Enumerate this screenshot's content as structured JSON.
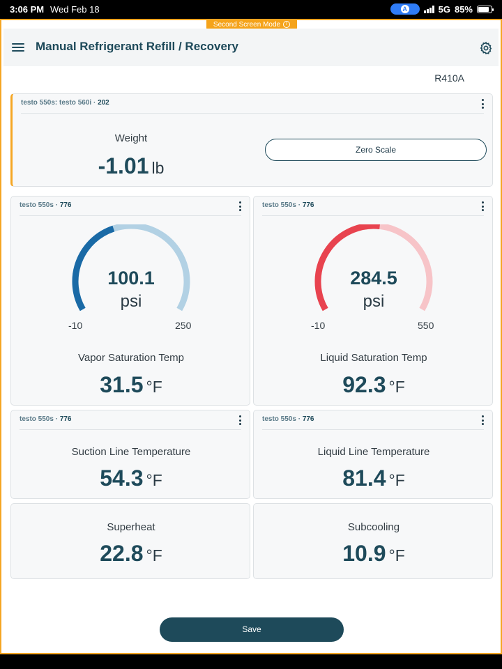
{
  "status_bar": {
    "time": "3:06 PM",
    "date": "Wed Feb 18",
    "network": "5G",
    "battery": "85%",
    "battery_fraction": 0.85
  },
  "mode_tag": "Second Screen Mode",
  "app": {
    "title": "Manual Refrigerant Refill / Recovery",
    "refrigerant": "R410A"
  },
  "weight_card": {
    "device": "testo 550s: testo 560i",
    "device_id": "202",
    "label": "Weight",
    "value": "-1.01",
    "unit": "lb",
    "zero_button": "Zero Scale"
  },
  "gauge_cards": [
    {
      "device": "testo 550s",
      "device_id": "776",
      "value": "100.1",
      "unit": "psi",
      "min": "-10",
      "max": "250",
      "min_num": -10,
      "max_num": 250,
      "value_num": 100.1,
      "active_color": "#1a6aa6",
      "track_color": "#b2d1e4",
      "label": "Vapor Saturation Temp",
      "temp": "31.5",
      "temp_unit": "°F"
    },
    {
      "device": "testo 550s",
      "device_id": "776",
      "value": "284.5",
      "unit": "psi",
      "min": "-10",
      "max": "550",
      "min_num": -10,
      "max_num": 550,
      "value_num": 284.5,
      "active_color": "#e8434f",
      "track_color": "#f7c4c8",
      "label": "Liquid Saturation Temp",
      "temp": "92.3",
      "temp_unit": "°F"
    }
  ],
  "line_cards": [
    {
      "device": "testo 550s",
      "device_id": "776",
      "label": "Suction Line Temperature",
      "value": "54.3",
      "unit": "°F"
    },
    {
      "device": "testo 550s",
      "device_id": "776",
      "label": "Liquid Line Temperature",
      "value": "81.4",
      "unit": "°F"
    }
  ],
  "calc_cards": [
    {
      "label": "Superheat",
      "value": "22.8",
      "unit": "°F"
    },
    {
      "label": "Subcooling",
      "value": "10.9",
      "unit": "°F"
    }
  ],
  "save_button": "Save",
  "colors": {
    "accent": "#f5a623",
    "primary": "#1e4a5a"
  }
}
